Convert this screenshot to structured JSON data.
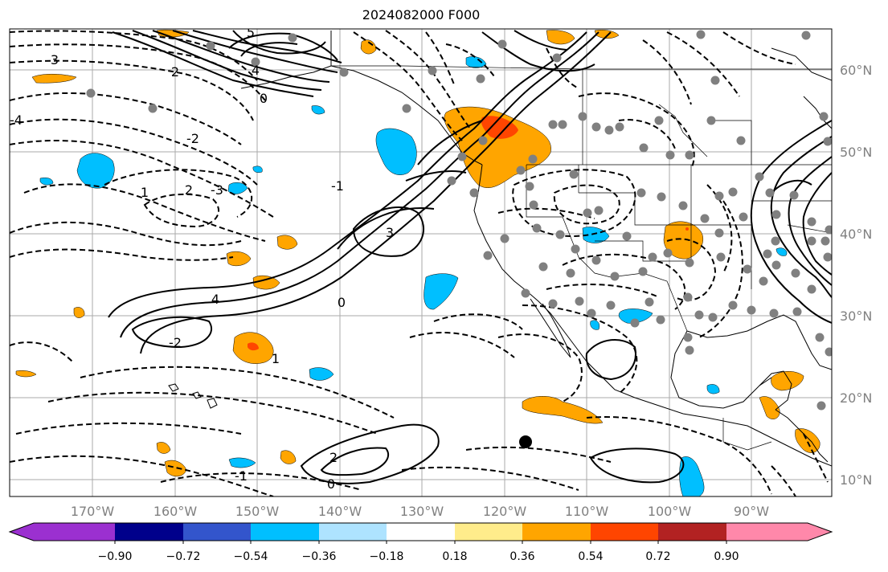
{
  "title": "2024082000 F000",
  "lon_labels": [
    "170°W",
    "160°W",
    "150°W",
    "140°W",
    "130°W",
    "120°W",
    "110°W",
    "100°W",
    "90°W"
  ],
  "lat_labels": [
    "60°N",
    "50°N",
    "40°N",
    "30°N",
    "20°N",
    "10°N"
  ],
  "colorbar": {
    "ticks": [
      "−0.90",
      "−0.72",
      "−0.54",
      "−0.36",
      "−0.18",
      "0.18",
      "0.36",
      "0.54",
      "0.72",
      "0.90"
    ],
    "colors": [
      "#9b30d0",
      "#00008b",
      "#3355cc",
      "#00bfff",
      "#aee3ff",
      "#ffffff",
      "#ffec8b",
      "#ffa500",
      "#ff4500",
      "#b22222",
      "#ff88aa"
    ]
  },
  "contour_labels": [
    "5",
    "4",
    "3",
    "2",
    "0",
    "-3",
    "-2",
    "-1",
    "-4",
    "1",
    "2",
    "3",
    "0",
    "4",
    "-2",
    "-1",
    "2",
    "0",
    "1"
  ],
  "colors": {
    "positive": "#ffa500",
    "strong_positive": "#ff4500",
    "negative": "#00bfff",
    "station": "#808080",
    "gridline": "#aaaaaa"
  }
}
